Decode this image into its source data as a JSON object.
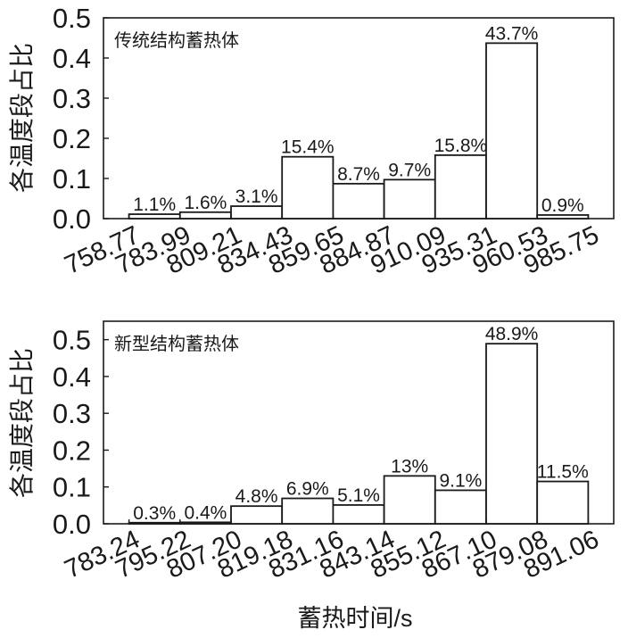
{
  "colors": {
    "axis": "#1a1a1a",
    "bar_fill": "#ffffff",
    "bar_stroke": "#1a1a1a",
    "background": "#ffffff"
  },
  "chart_data": [
    {
      "type": "bar",
      "title": "传统结构蓄热体",
      "ylabel": "各温度段占比",
      "xlabel": "",
      "ylim": [
        0,
        0.5
      ],
      "yticks": [
        "0.0",
        "0.1",
        "0.2",
        "0.3",
        "0.4",
        "0.5"
      ],
      "x_edges": [
        "758.77",
        "783.99",
        "809.21",
        "834.43",
        "859.65",
        "884.87",
        "910.09",
        "935.31",
        "960.53",
        "985.75"
      ],
      "values": [
        0.011,
        0.016,
        0.031,
        0.154,
        0.087,
        0.097,
        0.158,
        0.437,
        0.009
      ],
      "labels": [
        "1.1%",
        "1.6%",
        "3.1%",
        "15.4%",
        "8.7%",
        "9.7%",
        "15.8%",
        "43.7%",
        "0.9%"
      ],
      "grid": false
    },
    {
      "type": "bar",
      "title": "新型结构蓄热体",
      "ylabel": "各温度段占比",
      "xlabel": "蓄热时间/s",
      "ylim": [
        0,
        0.55
      ],
      "yticks": [
        "0.0",
        "0.1",
        "0.2",
        "0.3",
        "0.4",
        "0.5"
      ],
      "x_edges": [
        "783.24",
        "795.22",
        "807.20",
        "819.18",
        "831.16",
        "843.14",
        "855.12",
        "867.10",
        "879.08",
        "891.06"
      ],
      "values": [
        0.003,
        0.004,
        0.048,
        0.069,
        0.051,
        0.13,
        0.091,
        0.489,
        0.115
      ],
      "labels": [
        "0.3%",
        "0.4%",
        "4.8%",
        "6.9%",
        "5.1%",
        "13%",
        "9.1%",
        "48.9%",
        "11.5%"
      ],
      "grid": false
    }
  ]
}
